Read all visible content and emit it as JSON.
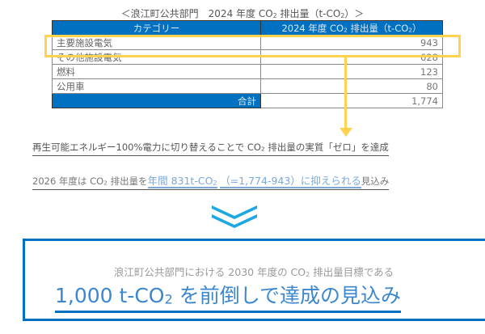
{
  "title": {
    "pre": "＜浪江町公共部門　2024 年度 CO",
    "sub": "2",
    "mid": " 排出量（t-CO",
    "sub2": "2",
    "post": "）＞"
  },
  "table": {
    "headers": {
      "category": "カテゴリー",
      "value_pre": "2024 年度 CO",
      "value_sub": "2",
      "value_mid": " 排出量（t-CO",
      "value_sub2": "2",
      "value_post": "）"
    },
    "rows": [
      {
        "category": "主要施設電気",
        "value": "943"
      },
      {
        "category": "その他施設電気",
        "value": "628"
      },
      {
        "category": "燃料",
        "value": "123"
      },
      {
        "category": "公用車",
        "value": "80"
      }
    ],
    "total_label": "合計",
    "total_value": "1,774"
  },
  "line1": {
    "pre": "再生可能エネルギー100%電力に切り替えることで CO",
    "sub": "2",
    "post": " 排出量の実質「ゼロ」を達成"
  },
  "line2": {
    "pre": "2026 年度は CO",
    "sub": "2",
    "mid": " 排出量を",
    "hi1": "年間 831t-CO",
    "hi1sub": "2",
    "hi2": "（=1,774-943）に抑えられる",
    "post": "見込み"
  },
  "result": {
    "line1_pre": "浪江町公共部門における 2030 年度の CO",
    "line1_sub": "2",
    "line1_post": " 排出量目標である",
    "line2_pre": "1,000 t-CO",
    "line2_sub": "2",
    "line2_post": " を前倒しで達成の見込み"
  },
  "colors": {
    "header_blue": "#0070c0",
    "highlight_yellow": "#ffd34d",
    "chevron": "#1ea7e1",
    "accent_text": "#3b87d0"
  }
}
